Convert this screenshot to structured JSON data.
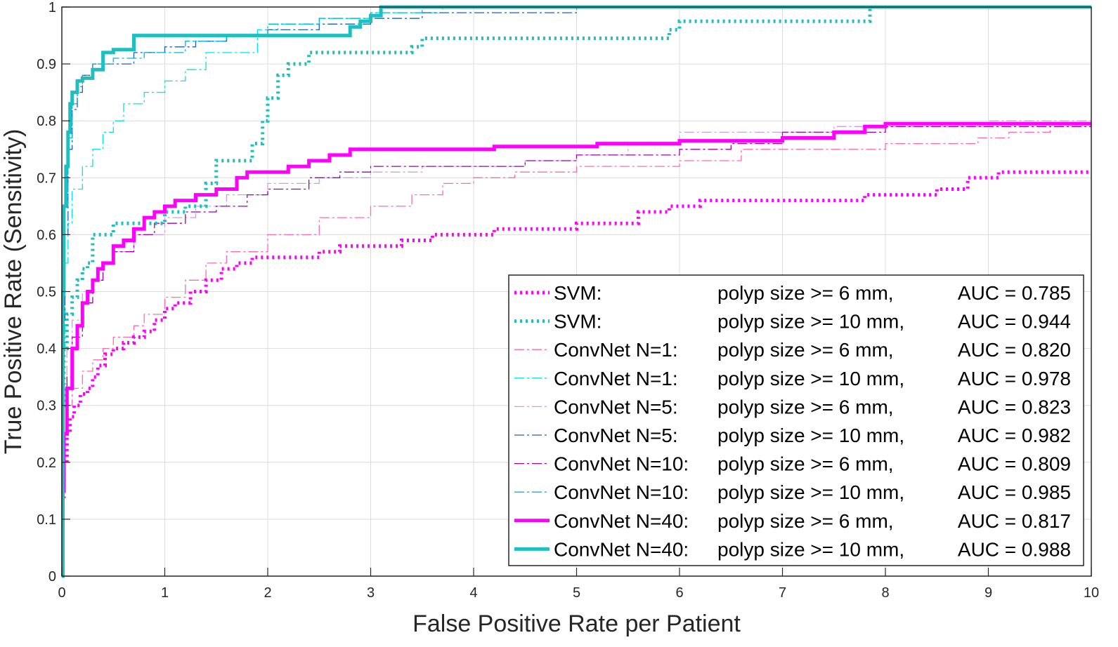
{
  "chart_data": {
    "type": "line",
    "title": "",
    "xlabel": "False Positive Rate per Patient",
    "ylabel": "True Positive Rate (Sensitivity)",
    "xlim": [
      0,
      10
    ],
    "ylim": [
      0,
      1
    ],
    "xticks": [
      "0",
      "1",
      "2",
      "3",
      "4",
      "5",
      "6",
      "7",
      "8",
      "9",
      "10"
    ],
    "yticks": [
      "0",
      "0.1",
      "0.2",
      "0.3",
      "0.4",
      "0.5",
      "0.6",
      "0.7",
      "0.8",
      "0.9",
      "1"
    ],
    "grid": true,
    "legend_position": "bottom-right",
    "series": [
      {
        "name": "SVM:",
        "legend_condition": "polyp size >= 6 mm,",
        "legend_auc": "AUC = 0.785",
        "color": "#ff00ff",
        "style": "dotted",
        "weight": "thick",
        "x": [
          0,
          0.02,
          0.05,
          0.08,
          0.12,
          0.18,
          0.25,
          0.3,
          0.35,
          0.42,
          0.5,
          0.6,
          0.7,
          0.8,
          0.9,
          1.0,
          1.1,
          1.25,
          1.4,
          1.55,
          1.7,
          1.85,
          2.0,
          2.3,
          2.5,
          2.7,
          3.0,
          3.3,
          3.6,
          3.9,
          4.2,
          4.6,
          5.0,
          5.2,
          5.6,
          5.9,
          6.2,
          6.8,
          7.3,
          7.8,
          8.2,
          8.5,
          8.8,
          9.1,
          9.5,
          10
        ],
        "y": [
          0.14,
          0.2,
          0.25,
          0.28,
          0.3,
          0.32,
          0.33,
          0.35,
          0.37,
          0.39,
          0.4,
          0.41,
          0.42,
          0.43,
          0.45,
          0.47,
          0.48,
          0.5,
          0.52,
          0.54,
          0.55,
          0.56,
          0.56,
          0.56,
          0.57,
          0.58,
          0.58,
          0.59,
          0.6,
          0.6,
          0.61,
          0.61,
          0.62,
          0.62,
          0.64,
          0.65,
          0.66,
          0.66,
          0.66,
          0.67,
          0.67,
          0.68,
          0.7,
          0.71,
          0.71,
          0.71
        ]
      },
      {
        "name": "SVM:",
        "legend_condition": "polyp size >= 10 mm,",
        "legend_auc": "AUC = 0.944",
        "color": "#1fbfbf",
        "style": "dotted",
        "weight": "thick",
        "x": [
          0,
          0.02,
          0.05,
          0.1,
          0.15,
          0.2,
          0.25,
          0.3,
          0.5,
          0.7,
          1.0,
          1.2,
          1.4,
          1.5,
          1.7,
          1.85,
          1.95,
          2.0,
          2.1,
          2.2,
          2.4,
          2.6,
          2.8,
          3.0,
          3.4,
          3.5,
          3.6,
          3.9,
          4.5,
          5.4,
          5.9,
          6.0,
          6.5,
          7.2,
          7.7,
          7.85,
          8.5,
          9.5,
          10
        ],
        "y": [
          0.3,
          0.4,
          0.46,
          0.49,
          0.52,
          0.54,
          0.55,
          0.6,
          0.62,
          0.62,
          0.64,
          0.65,
          0.69,
          0.73,
          0.73,
          0.76,
          0.8,
          0.84,
          0.88,
          0.9,
          0.92,
          0.92,
          0.92,
          0.92,
          0.93,
          0.945,
          0.945,
          0.945,
          0.945,
          0.945,
          0.96,
          0.975,
          0.975,
          0.975,
          0.975,
          1.0,
          1.0,
          1.0,
          1.0
        ]
      },
      {
        "name": "ConvNet N=1:",
        "legend_condition": "polyp size >= 6 mm,",
        "legend_auc": "AUC = 0.820",
        "color": "#ff69b4",
        "style": "dashdot",
        "weight": "thin",
        "x": [
          0,
          0.05,
          0.1,
          0.2,
          0.3,
          0.4,
          0.5,
          0.7,
          0.8,
          1.0,
          1.2,
          1.4,
          1.6,
          2.0,
          2.5,
          3.0,
          3.4,
          3.7,
          4.0,
          4.4,
          5.0,
          5.5,
          6.0,
          6.6,
          7.1,
          7.6,
          8.0,
          8.5,
          8.9,
          9.2,
          9.6,
          10
        ],
        "y": [
          0.25,
          0.3,
          0.33,
          0.36,
          0.38,
          0.4,
          0.42,
          0.44,
          0.46,
          0.49,
          0.52,
          0.55,
          0.57,
          0.6,
          0.63,
          0.65,
          0.67,
          0.69,
          0.7,
          0.71,
          0.72,
          0.72,
          0.73,
          0.75,
          0.75,
          0.75,
          0.76,
          0.76,
          0.77,
          0.78,
          0.79,
          0.79
        ]
      },
      {
        "name": "ConvNet N=1:",
        "legend_condition": "polyp size >= 10 mm,",
        "legend_auc": "AUC = 0.978",
        "color": "#00e5e5",
        "style": "dashdot",
        "weight": "thin",
        "x": [
          0,
          0.03,
          0.06,
          0.1,
          0.2,
          0.3,
          0.4,
          0.5,
          0.6,
          0.8,
          1.0,
          1.2,
          1.4,
          1.6,
          1.9,
          2.1,
          2.5,
          3.0,
          3.7,
          4.5,
          6,
          8,
          10
        ],
        "y": [
          0.4,
          0.55,
          0.62,
          0.68,
          0.72,
          0.75,
          0.78,
          0.8,
          0.83,
          0.85,
          0.87,
          0.89,
          0.92,
          0.92,
          0.96,
          0.97,
          0.98,
          0.99,
          1.0,
          1.0,
          1.0,
          1.0,
          1.0
        ]
      },
      {
        "name": "ConvNet N=5:",
        "legend_condition": "polyp size >= 6 mm,",
        "legend_auc": "AUC = 0.823",
        "color": "#c9a0ec",
        "style": "dashdot",
        "weight": "thin",
        "x": [
          0,
          0.05,
          0.1,
          0.2,
          0.3,
          0.4,
          0.5,
          0.7,
          1.0,
          1.3,
          1.6,
          2.0,
          2.5,
          3.0,
          3.5,
          4.0,
          4.5,
          5.0,
          5.5,
          6.0,
          6.5,
          7.0,
          7.5,
          8.0,
          8.5,
          9.0,
          9.5,
          10
        ],
        "y": [
          0.3,
          0.4,
          0.45,
          0.5,
          0.52,
          0.55,
          0.57,
          0.6,
          0.63,
          0.65,
          0.67,
          0.69,
          0.7,
          0.71,
          0.72,
          0.72,
          0.73,
          0.74,
          0.76,
          0.78,
          0.78,
          0.78,
          0.79,
          0.79,
          0.79,
          0.8,
          0.8,
          0.8
        ]
      },
      {
        "name": "ConvNet N=5:",
        "legend_condition": "polyp size >= 10 mm,",
        "legend_auc": "AUC = 0.982",
        "color": "#1f5fbf",
        "style": "dashdot",
        "weight": "thin",
        "x": [
          0,
          0.03,
          0.06,
          0.1,
          0.15,
          0.2,
          0.3,
          0.45,
          0.7,
          1.0,
          1.3,
          1.6,
          2.0,
          2.5,
          3.0,
          3.5,
          4.2,
          5.0,
          6,
          8,
          10
        ],
        "y": [
          0.45,
          0.6,
          0.75,
          0.82,
          0.85,
          0.88,
          0.9,
          0.9,
          0.92,
          0.93,
          0.94,
          0.95,
          0.96,
          0.97,
          0.98,
          0.99,
          0.99,
          1.0,
          1.0,
          1.0,
          1.0
        ]
      },
      {
        "name": "ConvNet N=10:",
        "legend_condition": "polyp size >= 6 mm,",
        "legend_auc": "AUC = 0.809",
        "color": "#a000b0",
        "style": "dashdot",
        "weight": "thin",
        "x": [
          0,
          0.05,
          0.1,
          0.2,
          0.3,
          0.4,
          0.5,
          0.7,
          0.9,
          1.2,
          1.5,
          1.8,
          2.0,
          2.4,
          2.7,
          3.0,
          3.5,
          4.0,
          4.5,
          5.0,
          5.5,
          6.0,
          6.5,
          7.0,
          7.5,
          8.0,
          8.5,
          9.0,
          9.5,
          10
        ],
        "y": [
          0.25,
          0.35,
          0.42,
          0.48,
          0.52,
          0.55,
          0.57,
          0.6,
          0.62,
          0.64,
          0.65,
          0.67,
          0.68,
          0.7,
          0.71,
          0.72,
          0.72,
          0.72,
          0.73,
          0.74,
          0.74,
          0.75,
          0.76,
          0.78,
          0.78,
          0.79,
          0.79,
          0.79,
          0.79,
          0.79
        ]
      },
      {
        "name": "ConvNet N=10:",
        "legend_condition": "polyp size >= 10 mm,",
        "legend_auc": "AUC = 0.985",
        "color": "#00b5e5",
        "style": "dashdot",
        "weight": "thin",
        "x": [
          0,
          0.03,
          0.06,
          0.1,
          0.15,
          0.2,
          0.3,
          0.5,
          0.8,
          1.2,
          1.6,
          2.0,
          2.5,
          3.0,
          3.5,
          4.2,
          5,
          6,
          8,
          10
        ],
        "y": [
          0.5,
          0.65,
          0.77,
          0.83,
          0.86,
          0.88,
          0.9,
          0.91,
          0.92,
          0.94,
          0.95,
          0.97,
          0.98,
          0.99,
          1.0,
          1.0,
          1.0,
          1.0,
          1.0,
          1.0
        ]
      },
      {
        "name": "ConvNet N=40:",
        "legend_condition": "polyp size >= 6 mm,",
        "legend_auc": "AUC = 0.817",
        "color": "#ff00ff",
        "style": "solid",
        "weight": "thick",
        "x": [
          0,
          0.02,
          0.05,
          0.1,
          0.15,
          0.2,
          0.25,
          0.3,
          0.35,
          0.4,
          0.5,
          0.6,
          0.7,
          0.8,
          0.9,
          1.0,
          1.1,
          1.3,
          1.5,
          1.7,
          1.8,
          2.0,
          2.2,
          2.4,
          2.6,
          2.8,
          3.0,
          3.5,
          4.0,
          4.2,
          5.0,
          5.2,
          5.5,
          6.0,
          6.5,
          7.0,
          7.5,
          7.8,
          8.0,
          9.0,
          10
        ],
        "y": [
          0.15,
          0.25,
          0.33,
          0.4,
          0.44,
          0.48,
          0.5,
          0.52,
          0.54,
          0.55,
          0.58,
          0.59,
          0.61,
          0.63,
          0.64,
          0.65,
          0.66,
          0.67,
          0.68,
          0.7,
          0.71,
          0.71,
          0.72,
          0.73,
          0.74,
          0.75,
          0.75,
          0.75,
          0.75,
          0.755,
          0.755,
          0.76,
          0.76,
          0.765,
          0.765,
          0.77,
          0.78,
          0.79,
          0.795,
          0.795,
          0.795
        ]
      },
      {
        "name": "ConvNet N=40:",
        "legend_condition": "polyp size >= 10 mm,",
        "legend_auc": "AUC = 0.988",
        "color": "#1fbfbf",
        "style": "solid",
        "weight": "thick",
        "x": [
          0,
          0.01,
          0.02,
          0.04,
          0.06,
          0.08,
          0.1,
          0.15,
          0.2,
          0.3,
          0.4,
          0.5,
          0.7,
          1.0,
          2.0,
          2.7,
          2.8,
          2.9,
          3.0,
          3.1,
          4.0,
          6.0,
          8.0,
          10
        ],
        "y": [
          0.0,
          0.5,
          0.65,
          0.72,
          0.78,
          0.83,
          0.85,
          0.87,
          0.875,
          0.89,
          0.92,
          0.925,
          0.95,
          0.95,
          0.95,
          0.95,
          0.965,
          0.975,
          0.985,
          1.0,
          1.0,
          1.0,
          1.0,
          1.0
        ]
      }
    ]
  }
}
